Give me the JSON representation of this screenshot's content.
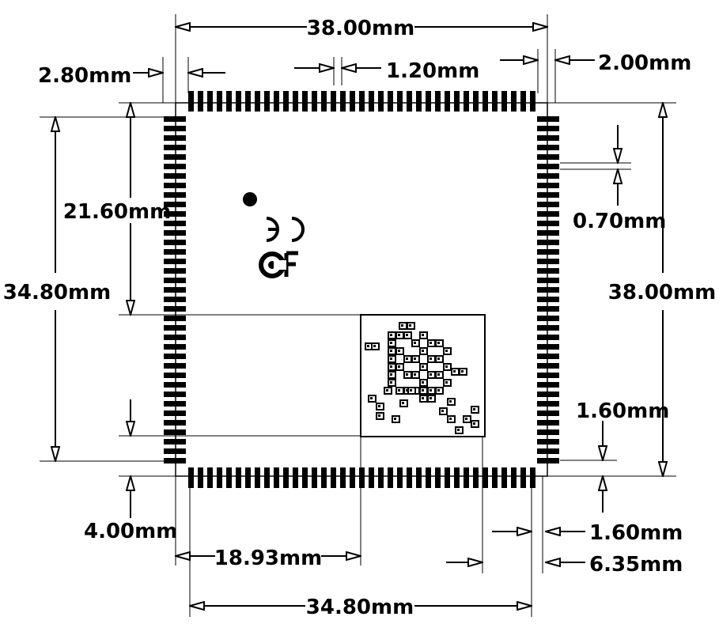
{
  "diagram": {
    "title": "",
    "module_outline": "QFP module footprint drawing",
    "marks": {
      "ce": "CE",
      "fc": "FC"
    },
    "dimensions": {
      "top_width": "38.00mm",
      "left_margin": "2.80mm",
      "pad_pitch": "1.20mm",
      "right_margin": "2.00mm",
      "left_inner_height": "21.60mm",
      "left_total_height": "34.80mm",
      "pad_gap": "0.70mm",
      "right_height": "38.00mm",
      "pad_width_right": "1.60mm",
      "bottom_left_offset": "4.00mm",
      "bottom_pad_offset": "1.60mm",
      "bottom_edge_offset": "6.35mm",
      "shield_offset": "18.93mm",
      "bottom_width": "34.80mm"
    }
  }
}
